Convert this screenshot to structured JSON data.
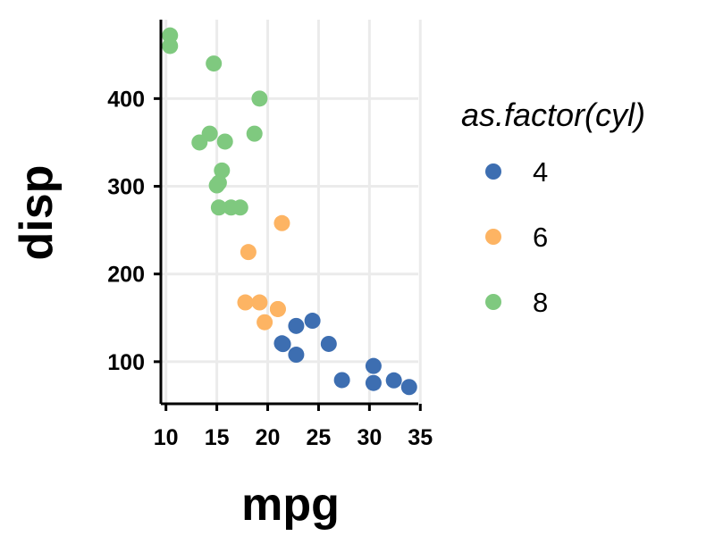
{
  "chart_data": {
    "type": "scatter",
    "xlabel": "mpg",
    "ylabel": "disp",
    "xlim": [
      9.5,
      34.8
    ],
    "ylim": [
      52,
      490
    ],
    "x_ticks": [
      10,
      15,
      20,
      25,
      30,
      35
    ],
    "y_ticks": [
      100,
      200,
      300,
      400
    ],
    "x_tick_labels": [
      "10",
      "15",
      "20",
      "25",
      "30",
      "35"
    ],
    "y_tick_labels": [
      "100",
      "200",
      "300",
      "400"
    ],
    "grid": true,
    "legend": {
      "title": "as.factor(cyl)",
      "position": "right",
      "entries": [
        {
          "label": "4",
          "color": "#3D6EB1"
        },
        {
          "label": "6",
          "color": "#FDB463"
        },
        {
          "label": "8",
          "color": "#7FC97F"
        }
      ]
    },
    "series": [
      {
        "name": "4",
        "color": "#3D6EB1",
        "points": [
          [
            22.8,
            108
          ],
          [
            24.4,
            146.7
          ],
          [
            22.8,
            140.8
          ],
          [
            32.4,
            78.7
          ],
          [
            30.4,
            75.7
          ],
          [
            33.9,
            71.1
          ],
          [
            21.5,
            120.1
          ],
          [
            27.3,
            79
          ],
          [
            26.0,
            120.3
          ],
          [
            30.4,
            95.1
          ],
          [
            21.4,
            121
          ]
        ]
      },
      {
        "name": "6",
        "color": "#FDB463",
        "points": [
          [
            21.0,
            160
          ],
          [
            21.0,
            160
          ],
          [
            21.4,
            258
          ],
          [
            18.1,
            225
          ],
          [
            19.2,
            167.6
          ],
          [
            17.8,
            167.6
          ],
          [
            19.7,
            145
          ]
        ]
      },
      {
        "name": "8",
        "color": "#7FC97F",
        "points": [
          [
            18.7,
            360
          ],
          [
            14.3,
            360
          ],
          [
            16.4,
            275.8
          ],
          [
            17.3,
            275.8
          ],
          [
            15.2,
            275.8
          ],
          [
            10.4,
            472
          ],
          [
            10.4,
            460
          ],
          [
            14.7,
            440
          ],
          [
            15.5,
            318
          ],
          [
            15.2,
            304
          ],
          [
            13.3,
            350
          ],
          [
            19.2,
            400
          ],
          [
            15.8,
            351
          ],
          [
            15.0,
            301
          ]
        ]
      }
    ]
  }
}
